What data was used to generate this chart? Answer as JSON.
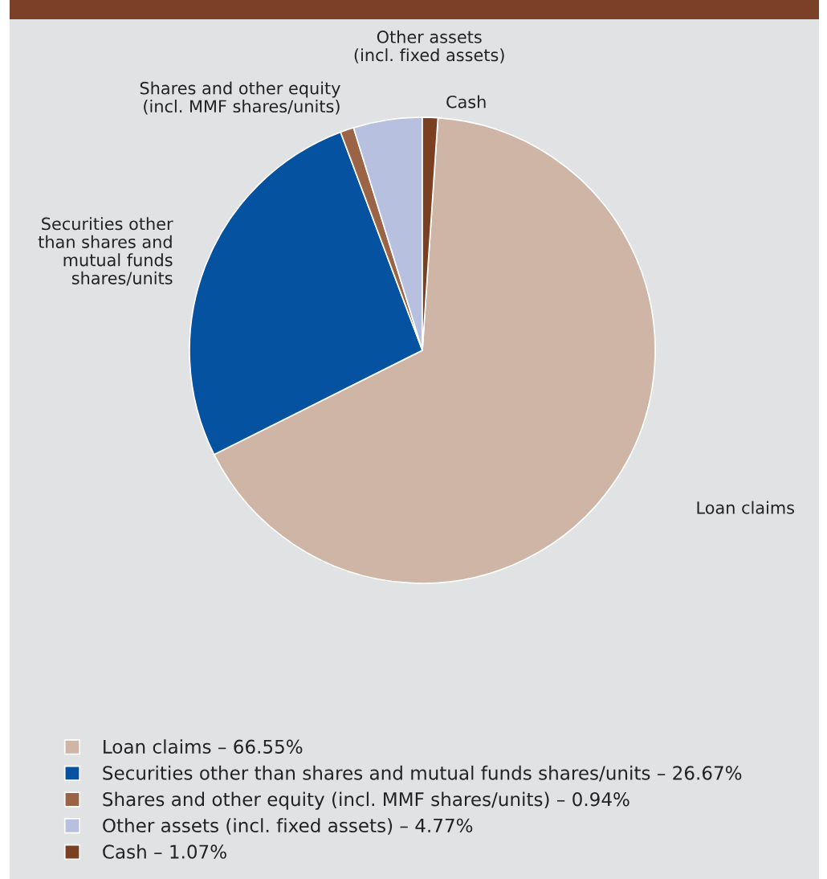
{
  "chart_data": {
    "type": "pie",
    "categories": [
      "Loan claims – 66.55%",
      "Securities other than shares and mutual funds shares/units – 26.67%",
      "Shares and other equity (incl. MMF shares/units) – 0.94%",
      "Other assets (incl. fixed assets) – 4.77%",
      "Cash – 1.07%"
    ],
    "values": [
      66.55,
      26.67,
      0.94,
      4.77,
      1.07
    ],
    "colors": [
      "#cfb5a5",
      "#0452a0",
      "#9c6446",
      "#b7c1df",
      "#7b3f22"
    ],
    "annotations": [
      "Loan claims",
      "Securities other\nthan shares and\nmutual funds\nshares/units",
      "Shares and other equity\n(incl. MMF shares/units)",
      "Other assets\n(incl. fixed assets)",
      "Cash"
    ],
    "legend": "bottom"
  }
}
